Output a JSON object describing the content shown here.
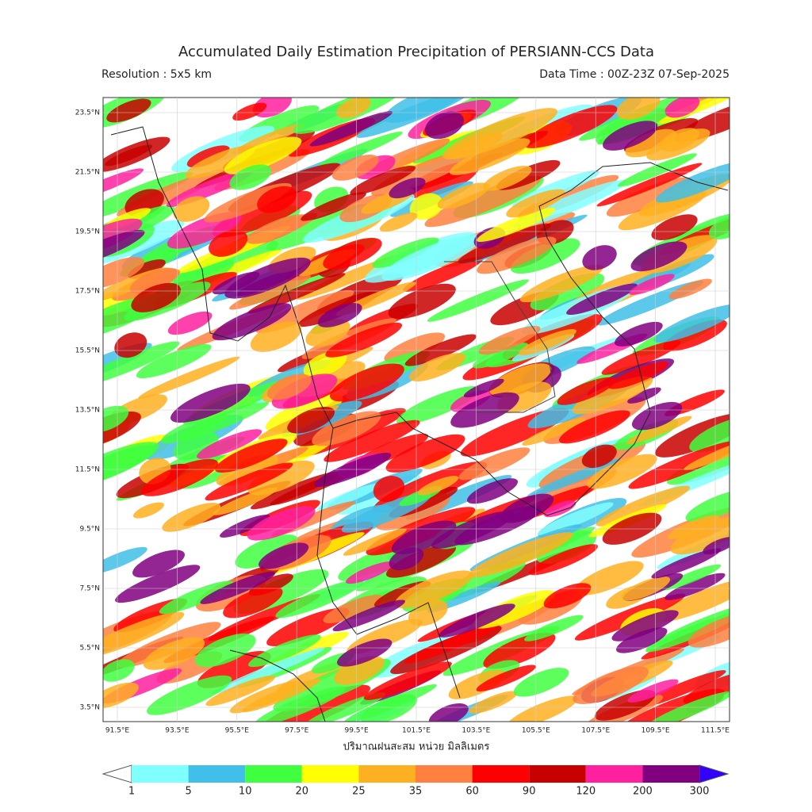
{
  "header": {
    "title": "Accumulated Daily Estimation Precipitation of PERSIANN-CCS Data",
    "resolution": "Resolution : 5x5 km",
    "data_time": "Data Time : 00Z-23Z 07-Sep-2025"
  },
  "map": {
    "lat_labels": [
      "23.5°N",
      "21.5°N",
      "19.5°N",
      "17.5°N",
      "15.5°N",
      "13.5°N",
      "11.5°N",
      "9.5°N",
      "7.5°N",
      "5.5°N",
      "3.5°N"
    ],
    "lon_labels": [
      "91.5°E",
      "93.5°E",
      "95.5°E",
      "97.5°E",
      "99.5°E",
      "101.5°E",
      "103.5°E",
      "105.5°E",
      "107.5°E",
      "109.5°E",
      "111.5°E"
    ]
  },
  "colorbar": {
    "label": "ปริมาณฝนสะสม หน่วย มิลลิเมตร",
    "ticks": [
      1,
      5,
      10,
      20,
      25,
      35,
      60,
      90,
      120,
      200,
      300
    ],
    "under_color": "#ffffff",
    "over_color": "#3300ff",
    "colors": [
      "#80ffff",
      "#40c0e8",
      "#40ff40",
      "#ffff00",
      "#ffb020",
      "#ff8040",
      "#ff0000",
      "#c80000",
      "#ff20a0",
      "#800080"
    ]
  }
}
